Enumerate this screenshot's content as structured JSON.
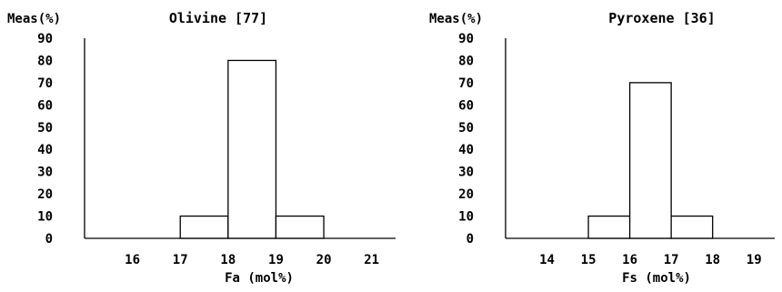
{
  "chart_data": [
    {
      "type": "bar",
      "title": "Olivine [77]",
      "ylabel": "Meas(%)",
      "xlabel": "Fa (mol%)",
      "ylim": [
        0,
        90
      ],
      "yticks": [
        "0",
        "10",
        "20",
        "30",
        "40",
        "50",
        "60",
        "70",
        "80",
        "90"
      ],
      "xrange": [
        15,
        21.5
      ],
      "xticks": [
        "16",
        "17",
        "18",
        "19",
        "20",
        "21"
      ],
      "bins": [
        {
          "from": 17,
          "to": 18,
          "value": 10
        },
        {
          "from": 18,
          "to": 19,
          "value": 80
        },
        {
          "from": 19,
          "to": 20,
          "value": 10
        }
      ]
    },
    {
      "type": "bar",
      "title": "Pyroxene [36]",
      "ylabel": "Meas(%)",
      "xlabel": "Fs (mol%)",
      "ylim": [
        0,
        90
      ],
      "yticks": [
        "0",
        "10",
        "20",
        "30",
        "40",
        "50",
        "60",
        "70",
        "80",
        "90"
      ],
      "xrange": [
        13,
        19.5
      ],
      "xticks": [
        "14",
        "15",
        "16",
        "17",
        "18",
        "19"
      ],
      "bins": [
        {
          "from": 15,
          "to": 16,
          "value": 10
        },
        {
          "from": 16,
          "to": 17,
          "value": 70
        },
        {
          "from": 17,
          "to": 18,
          "value": 10
        }
      ]
    }
  ]
}
